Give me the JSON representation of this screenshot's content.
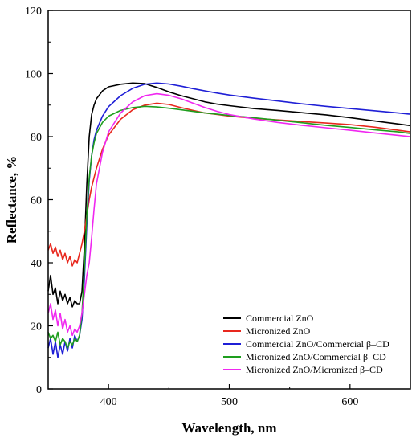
{
  "chart_data": {
    "type": "line",
    "title": "",
    "xlabel": "Wavelength, nm",
    "ylabel": "Reflectance, %",
    "xlim": [
      350,
      650
    ],
    "ylim": [
      0,
      120
    ],
    "xticks": [
      400,
      500,
      600
    ],
    "yticks": [
      0,
      20,
      40,
      60,
      80,
      100,
      120
    ],
    "grid": false,
    "legend_position": "bottom-right",
    "series": [
      {
        "name": "Commercial ZnO",
        "color": "#000000",
        "points": [
          [
            350,
            31
          ],
          [
            352,
            36
          ],
          [
            354,
            30
          ],
          [
            356,
            32
          ],
          [
            358,
            27
          ],
          [
            360,
            31
          ],
          [
            362,
            28
          ],
          [
            364,
            30
          ],
          [
            366,
            27
          ],
          [
            368,
            29
          ],
          [
            370,
            26
          ],
          [
            372,
            28
          ],
          [
            374,
            27
          ],
          [
            376,
            27
          ],
          [
            378,
            31
          ],
          [
            380,
            45
          ],
          [
            382,
            65
          ],
          [
            384,
            80
          ],
          [
            386,
            87
          ],
          [
            388,
            90
          ],
          [
            390,
            92
          ],
          [
            395,
            94.5
          ],
          [
            400,
            95.8
          ],
          [
            410,
            96.6
          ],
          [
            420,
            97
          ],
          [
            430,
            96.8
          ],
          [
            440,
            95.6
          ],
          [
            450,
            94.2
          ],
          [
            460,
            93
          ],
          [
            470,
            92
          ],
          [
            480,
            91
          ],
          [
            490,
            90.3
          ],
          [
            500,
            89.8
          ],
          [
            520,
            88.9
          ],
          [
            540,
            88.3
          ],
          [
            560,
            87.6
          ],
          [
            580,
            86.9
          ],
          [
            600,
            86
          ],
          [
            620,
            85
          ],
          [
            640,
            84
          ],
          [
            650,
            83.5
          ]
        ]
      },
      {
        "name": "Micronized ZnO",
        "color": "#e8281e",
        "points": [
          [
            350,
            44
          ],
          [
            352,
            46
          ],
          [
            354,
            43
          ],
          [
            356,
            45
          ],
          [
            358,
            42
          ],
          [
            360,
            44
          ],
          [
            362,
            41
          ],
          [
            364,
            43
          ],
          [
            366,
            40
          ],
          [
            368,
            42
          ],
          [
            370,
            39
          ],
          [
            372,
            41
          ],
          [
            374,
            40
          ],
          [
            376,
            43
          ],
          [
            378,
            46
          ],
          [
            380,
            50
          ],
          [
            382,
            55
          ],
          [
            384,
            60
          ],
          [
            386,
            64
          ],
          [
            388,
            67
          ],
          [
            390,
            70
          ],
          [
            395,
            76
          ],
          [
            400,
            80.5
          ],
          [
            410,
            85.5
          ],
          [
            420,
            88.5
          ],
          [
            430,
            90
          ],
          [
            440,
            90.6
          ],
          [
            450,
            90.2
          ],
          [
            460,
            89.2
          ],
          [
            470,
            88.3
          ],
          [
            480,
            87.5
          ],
          [
            490,
            87
          ],
          [
            500,
            86.5
          ],
          [
            520,
            85.8
          ],
          [
            540,
            85.3
          ],
          [
            560,
            84.8
          ],
          [
            580,
            84.3
          ],
          [
            600,
            83.8
          ],
          [
            620,
            83
          ],
          [
            640,
            82
          ],
          [
            650,
            81.5
          ]
        ]
      },
      {
        "name": "Commercial ZnO/Commercial β–CD",
        "color": "#1f1fd6",
        "points": [
          [
            350,
            13
          ],
          [
            352,
            16
          ],
          [
            354,
            11
          ],
          [
            356,
            15
          ],
          [
            358,
            10
          ],
          [
            360,
            14
          ],
          [
            362,
            11
          ],
          [
            364,
            15
          ],
          [
            366,
            12
          ],
          [
            368,
            16
          ],
          [
            370,
            13
          ],
          [
            372,
            17
          ],
          [
            374,
            15
          ],
          [
            376,
            17
          ],
          [
            378,
            22
          ],
          [
            380,
            35
          ],
          [
            382,
            52
          ],
          [
            384,
            66
          ],
          [
            386,
            74
          ],
          [
            388,
            79
          ],
          [
            390,
            82
          ],
          [
            395,
            86.5
          ],
          [
            400,
            89.5
          ],
          [
            410,
            93
          ],
          [
            420,
            95.3
          ],
          [
            430,
            96.6
          ],
          [
            440,
            97
          ],
          [
            450,
            96.7
          ],
          [
            460,
            96
          ],
          [
            470,
            95.2
          ],
          [
            480,
            94.5
          ],
          [
            490,
            93.8
          ],
          [
            500,
            93.2
          ],
          [
            520,
            92.2
          ],
          [
            540,
            91.3
          ],
          [
            560,
            90.4
          ],
          [
            580,
            89.6
          ],
          [
            600,
            88.9
          ],
          [
            620,
            88.2
          ],
          [
            640,
            87.5
          ],
          [
            650,
            87.1
          ]
        ]
      },
      {
        "name": "Micronized ZnO/Commercial β–CD",
        "color": "#1e9e1e",
        "points": [
          [
            350,
            18
          ],
          [
            352,
            16
          ],
          [
            354,
            17
          ],
          [
            356,
            15
          ],
          [
            358,
            18
          ],
          [
            360,
            14
          ],
          [
            362,
            16
          ],
          [
            364,
            15
          ],
          [
            366,
            13
          ],
          [
            368,
            15
          ],
          [
            370,
            14
          ],
          [
            372,
            16
          ],
          [
            374,
            15
          ],
          [
            376,
            17
          ],
          [
            378,
            24
          ],
          [
            380,
            38
          ],
          [
            382,
            55
          ],
          [
            384,
            67
          ],
          [
            386,
            74
          ],
          [
            388,
            78
          ],
          [
            390,
            81
          ],
          [
            395,
            84.5
          ],
          [
            400,
            86.5
          ],
          [
            410,
            88.3
          ],
          [
            420,
            89.2
          ],
          [
            430,
            89.6
          ],
          [
            440,
            89.4
          ],
          [
            450,
            89
          ],
          [
            460,
            88.5
          ],
          [
            470,
            88
          ],
          [
            480,
            87.5
          ],
          [
            490,
            87.1
          ],
          [
            500,
            86.7
          ],
          [
            520,
            86
          ],
          [
            540,
            85.2
          ],
          [
            560,
            84.4
          ],
          [
            580,
            83.6
          ],
          [
            600,
            82.9
          ],
          [
            620,
            82.2
          ],
          [
            640,
            81.5
          ],
          [
            650,
            81
          ]
        ]
      },
      {
        "name": "Micronized ZnO/Micronized β–CD",
        "color": "#f028f0",
        "points": [
          [
            350,
            24
          ],
          [
            352,
            27
          ],
          [
            354,
            22
          ],
          [
            356,
            25
          ],
          [
            358,
            20
          ],
          [
            360,
            24
          ],
          [
            362,
            19
          ],
          [
            364,
            22
          ],
          [
            366,
            18
          ],
          [
            368,
            20
          ],
          [
            370,
            17
          ],
          [
            372,
            19
          ],
          [
            374,
            18
          ],
          [
            376,
            20
          ],
          [
            378,
            24
          ],
          [
            380,
            30
          ],
          [
            382,
            36
          ],
          [
            384,
            40
          ],
          [
            386,
            48
          ],
          [
            388,
            57
          ],
          [
            390,
            65
          ],
          [
            395,
            75
          ],
          [
            400,
            81.5
          ],
          [
            410,
            87.5
          ],
          [
            420,
            91
          ],
          [
            430,
            93
          ],
          [
            440,
            93.6
          ],
          [
            450,
            93.1
          ],
          [
            460,
            92
          ],
          [
            470,
            90.6
          ],
          [
            480,
            89.2
          ],
          [
            490,
            88
          ],
          [
            500,
            87
          ],
          [
            520,
            85.6
          ],
          [
            540,
            84.5
          ],
          [
            560,
            83.6
          ],
          [
            580,
            82.8
          ],
          [
            600,
            82
          ],
          [
            620,
            81.2
          ],
          [
            640,
            80.4
          ],
          [
            650,
            80
          ]
        ]
      }
    ]
  }
}
